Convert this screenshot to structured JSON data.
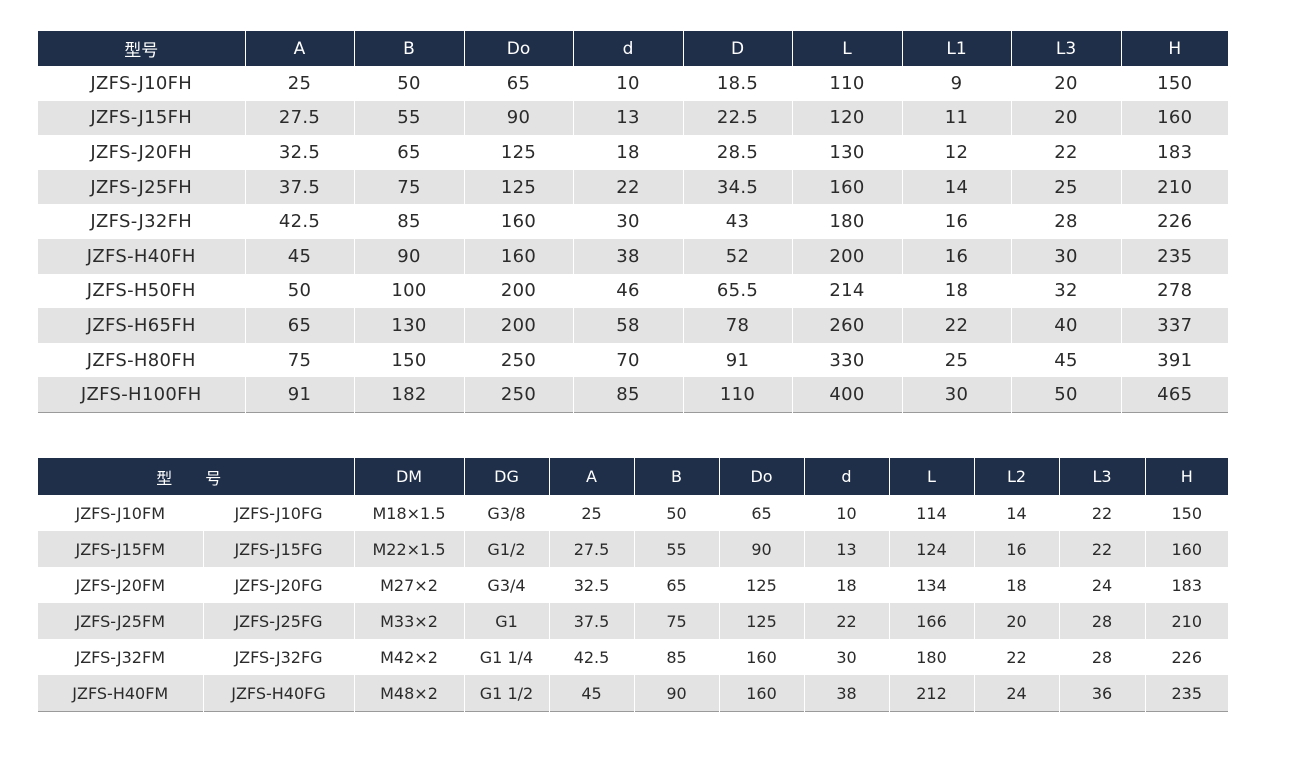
{
  "table1": {
    "headers": [
      "型号",
      "A",
      "B",
      "Do",
      "d",
      "D",
      "L",
      "L1",
      "L3",
      "H"
    ],
    "rows": [
      [
        "JZFS-J10FH",
        "25",
        "50",
        "65",
        "10",
        "18.5",
        "110",
        "9",
        "20",
        "150"
      ],
      [
        "JZFS-J15FH",
        "27.5",
        "55",
        "90",
        "13",
        "22.5",
        "120",
        "11",
        "20",
        "160"
      ],
      [
        "JZFS-J20FH",
        "32.5",
        "65",
        "125",
        "18",
        "28.5",
        "130",
        "12",
        "22",
        "183"
      ],
      [
        "JZFS-J25FH",
        "37.5",
        "75",
        "125",
        "22",
        "34.5",
        "160",
        "14",
        "25",
        "210"
      ],
      [
        "JZFS-J32FH",
        "42.5",
        "85",
        "160",
        "30",
        "43",
        "180",
        "16",
        "28",
        "226"
      ],
      [
        "JZFS-H40FH",
        "45",
        "90",
        "160",
        "38",
        "52",
        "200",
        "16",
        "30",
        "235"
      ],
      [
        "JZFS-H50FH",
        "50",
        "100",
        "200",
        "46",
        "65.5",
        "214",
        "18",
        "32",
        "278"
      ],
      [
        "JZFS-H65FH",
        "65",
        "130",
        "200",
        "58",
        "78",
        "260",
        "22",
        "40",
        "337"
      ],
      [
        "JZFS-H80FH",
        "75",
        "150",
        "250",
        "70",
        "91",
        "330",
        "25",
        "45",
        "391"
      ],
      [
        "JZFS-H100FH",
        "91",
        "182",
        "250",
        "85",
        "110",
        "400",
        "30",
        "50",
        "465"
      ]
    ]
  },
  "table2": {
    "headers": [
      "型 号",
      "DM",
      "DG",
      "A",
      "B",
      "Do",
      "d",
      "L",
      "L2",
      "L3",
      "H"
    ],
    "rows": [
      [
        "JZFS-J10FM",
        "JZFS-J10FG",
        "M18×1.5",
        "G3/8",
        "25",
        "50",
        "65",
        "10",
        "114",
        "14",
        "22",
        "150"
      ],
      [
        "JZFS-J15FM",
        "JZFS-J15FG",
        "M22×1.5",
        "G1/2",
        "27.5",
        "55",
        "90",
        "13",
        "124",
        "16",
        "22",
        "160"
      ],
      [
        "JZFS-J20FM",
        "JZFS-J20FG",
        "M27×2",
        "G3/4",
        "32.5",
        "65",
        "125",
        "18",
        "134",
        "18",
        "24",
        "183"
      ],
      [
        "JZFS-J25FM",
        "JZFS-J25FG",
        "M33×2",
        "G1",
        "37.5",
        "75",
        "125",
        "22",
        "166",
        "20",
        "28",
        "210"
      ],
      [
        "JZFS-J32FM",
        "JZFS-J32FG",
        "M42×2",
        "G1 1/4",
        "42.5",
        "85",
        "160",
        "30",
        "180",
        "22",
        "28",
        "226"
      ],
      [
        "JZFS-H40FM",
        "JZFS-H40FG",
        "M48×2",
        "G1 1/2",
        "45",
        "90",
        "160",
        "38",
        "212",
        "24",
        "36",
        "235"
      ]
    ]
  },
  "colors": {
    "header_bg": "#1f2f4a",
    "header_text": "#ffffff",
    "stripe_bg": "#e3e3e3"
  }
}
